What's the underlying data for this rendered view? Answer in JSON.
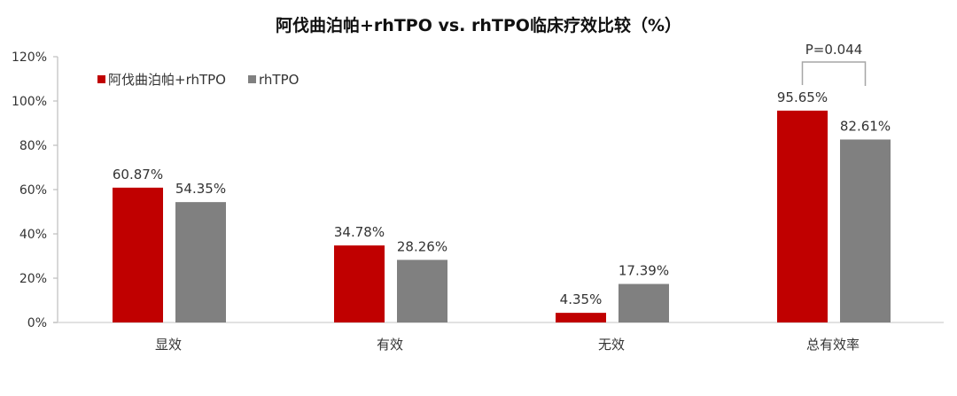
{
  "title": "阿伐曲泊帕+rhTPO vs. rhTPO临床疗效比较（%）",
  "legend": [
    {
      "label": "阿伐曲泊帕+rhTPO",
      "color": "#C00000"
    },
    {
      "label": "rhTPO",
      "color": "#808080"
    }
  ],
  "annotation": {
    "text": "P=0.044",
    "category": "总有效率"
  },
  "chart_data": {
    "type": "bar",
    "title": "阿伐曲泊帕+rhTPO vs. rhTPO临床疗效比较（%）",
    "xlabel": "",
    "ylabel": "",
    "categories": [
      "显效",
      "有效",
      "无效",
      "总有效率"
    ],
    "series": [
      {
        "name": "阿伐曲泊帕+rhTPO",
        "color": "#C00000",
        "values": [
          60.87,
          34.78,
          4.35,
          95.65
        ],
        "labels": [
          "60.87%",
          "34.78%",
          "4.35%",
          "95.65%"
        ]
      },
      {
        "name": "rhTPO",
        "color": "#808080",
        "values": [
          54.35,
          28.26,
          17.39,
          82.61
        ],
        "labels": [
          "54.35%",
          "28.26%",
          "17.39%",
          "82.61%"
        ]
      }
    ],
    "ylim": [
      0,
      120
    ],
    "yticks": [
      0,
      20,
      40,
      60,
      80,
      100,
      120
    ],
    "ytick_labels": [
      "0%",
      "20%",
      "40%",
      "60%",
      "80%",
      "100%",
      "120%"
    ],
    "grid": false,
    "legend_position": "top-left inside",
    "annotations": [
      {
        "text": "P=0.044",
        "type": "bracket",
        "between": [
          "阿伐曲泊帕+rhTPO",
          "rhTPO"
        ],
        "category": "总有效率"
      }
    ]
  }
}
